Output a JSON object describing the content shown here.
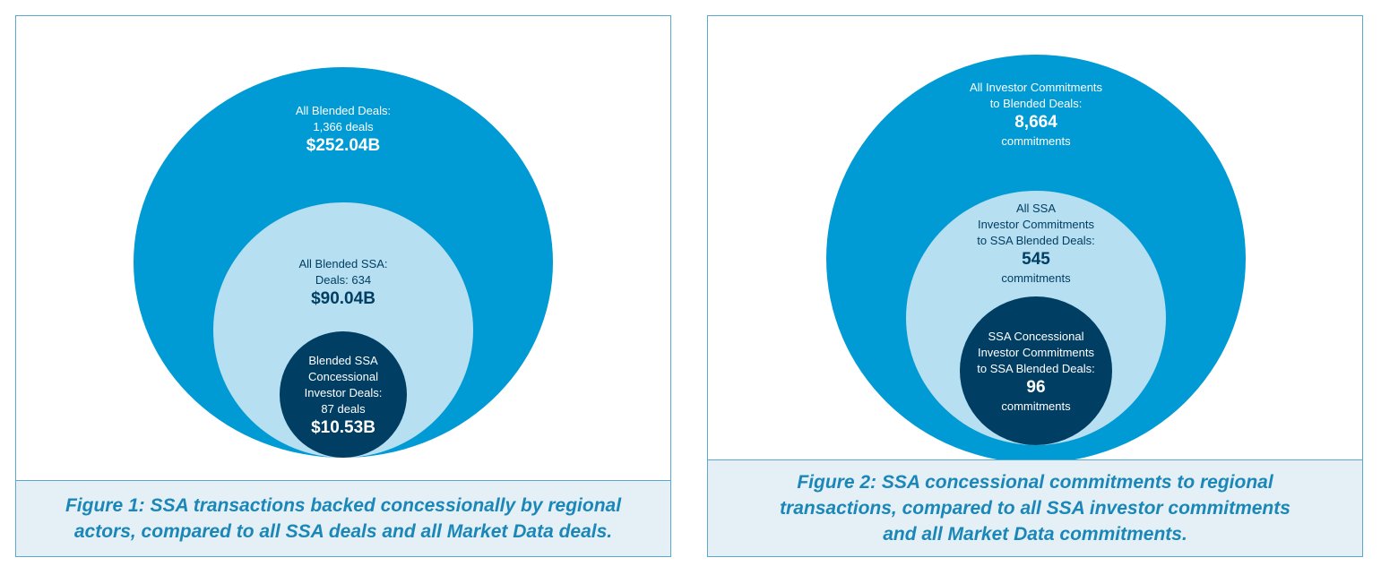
{
  "colors": {
    "outer": "#009ad4",
    "middle": "#b7dff2",
    "inner": "#003e63",
    "text_light": "#ffffff",
    "text_dark": "#003e63",
    "caption_text": "#1a87b8",
    "caption_bg": "#e5f0f6",
    "border": "#5aa7cf"
  },
  "figure1": {
    "outer": {
      "line1": "All Blended Deals:",
      "line2": "1,366 deals",
      "value": "$252.04B"
    },
    "middle": {
      "line1": "All Blended SSA:",
      "line2": "Deals: 634",
      "value": "$90.04B"
    },
    "inner": {
      "line1": "Blended SSA",
      "line2": "Concessional",
      "line3": "Investor Deals:",
      "line4": "87 deals",
      "value": "$10.53B"
    },
    "caption": "Figure 1: SSA transactions backed concessionally by regional actors, compared to all SSA deals and all Market Data deals."
  },
  "figure2": {
    "outer": {
      "line1": "All Investor Commitments",
      "line2": "to Blended Deals:",
      "value": "8,664",
      "unit": "commitments"
    },
    "middle": {
      "line1": "All SSA",
      "line2": "Investor Commitments",
      "line3": "to SSA Blended Deals:",
      "value": "545",
      "unit": "commitments"
    },
    "inner": {
      "line1": "SSA Concessional",
      "line2": "Investor Commitments",
      "line3": "to SSA Blended Deals:",
      "value": "96",
      "unit": "commitments"
    },
    "caption": "Figure 2: SSA concessional commitments to regional transactions, compared to all SSA investor commitments and all Market Data commitments."
  }
}
